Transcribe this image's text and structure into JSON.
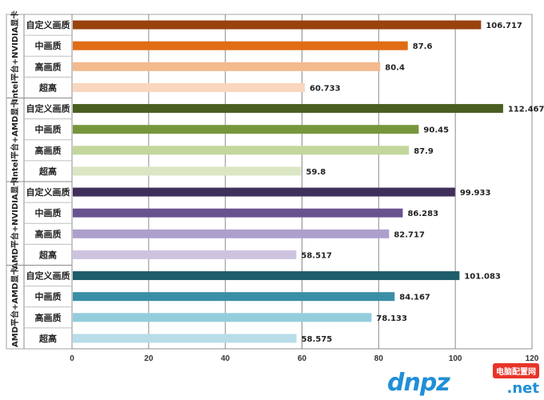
{
  "chart_data": {
    "type": "bar",
    "orientation": "horizontal",
    "title": "",
    "xlabel": "",
    "ylabel": "",
    "xlim": [
      0,
      120
    ],
    "x_ticks": [
      "0",
      "20",
      "40",
      "60",
      "80",
      "100",
      "120"
    ],
    "grid": "vertical",
    "legend": "none",
    "groups": [
      {
        "name": "Intel平台+NVIDIA显卡",
        "bars": [
          {
            "category": "自定义画质",
            "value": 106.717,
            "label": "106.717",
            "color": "#99420e"
          },
          {
            "category": "中画质",
            "value": 87.6,
            "label": "87.6",
            "color": "#e06c14"
          },
          {
            "category": "高画质",
            "value": 80.4,
            "label": "80.4",
            "color": "#f4b98c"
          },
          {
            "category": "超高",
            "value": 60.733,
            "label": "60.733",
            "color": "#f9d6bd"
          }
        ]
      },
      {
        "name": "Intel平台+AMD显卡",
        "bars": [
          {
            "category": "自定义画质",
            "value": 112.467,
            "label": "112.467",
            "color": "#4a5e21"
          },
          {
            "category": "中画质",
            "value": 90.45,
            "label": "90.45",
            "color": "#77963b"
          },
          {
            "category": "高画质",
            "value": 87.9,
            "label": "87.9",
            "color": "#c3d69b"
          },
          {
            "category": "超高",
            "value": 59.8,
            "label": "59.8",
            "color": "#dbe6c4"
          }
        ]
      },
      {
        "name": "AMD平台+NVIDIA显卡",
        "bars": [
          {
            "category": "自定义画质",
            "value": 99.933,
            "label": "99.933",
            "color": "#3e2f5b"
          },
          {
            "category": "中画质",
            "value": 86.283,
            "label": "86.283",
            "color": "#6a5290"
          },
          {
            "category": "高画质",
            "value": 82.717,
            "label": "82.717",
            "color": "#ad9fcb"
          },
          {
            "category": "超高",
            "value": 58.517,
            "label": "58.517",
            "color": "#cdc3df"
          }
        ]
      },
      {
        "name": "AMD平台+AMD显卡",
        "bars": [
          {
            "category": "自定义画质",
            "value": 101.083,
            "label": "101.083",
            "color": "#1e5d6b"
          },
          {
            "category": "中画质",
            "value": 84.167,
            "label": "84.167",
            "color": "#3a8ea6"
          },
          {
            "category": "高画质",
            "value": 78.133,
            "label": "78.133",
            "color": "#93cddd"
          },
          {
            "category": "超高",
            "value": 58.575,
            "label": "58.575",
            "color": "#b7dde8"
          }
        ]
      }
    ]
  },
  "watermark": {
    "logo_text": "dnpz",
    "badge_text": "电脑配置网",
    "domain_text": ".net",
    "color": "#1f8fd6",
    "badge_color": "#e8342a"
  }
}
